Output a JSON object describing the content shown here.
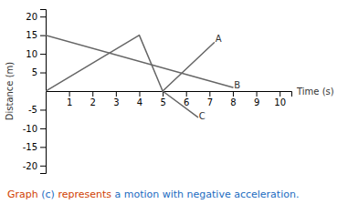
{
  "chart_data": {
    "type": "line",
    "x_label": "Time (s)",
    "y_label": "Distance (m)",
    "series": [
      {
        "x": [
          0,
          8
        ],
        "values": [
          15,
          1
        ],
        "color": "#666666"
      },
      {
        "x": [
          0,
          4,
          5
        ],
        "values": [
          0,
          15,
          0
        ],
        "color": "#666666"
      },
      {
        "x": [
          5,
          7.2
        ],
        "values": [
          0,
          13
        ],
        "color": "#666666"
      },
      {
        "x": [
          5,
          6.5
        ],
        "values": [
          0,
          -7
        ],
        "color": "#666666"
      }
    ],
    "annotations": [
      {
        "text": "A",
        "x": 7.25,
        "y": 13.1
      },
      {
        "text": "B",
        "x": 8.05,
        "y": 0.8
      },
      {
        "text": "C",
        "x": 6.55,
        "y": -7.5
      }
    ],
    "xlim": [
      0,
      10.5
    ],
    "ylim": [
      -22,
      22
    ],
    "xticks": [
      1,
      2,
      3,
      4,
      5,
      6,
      7,
      8,
      9,
      10
    ],
    "yticks": [
      -20,
      -15,
      -10,
      -5,
      5,
      10,
      15,
      20
    ],
    "grid": false,
    "caption": [
      {
        "text": "Graph ",
        "color": "#d04000"
      },
      {
        "text": "(c)",
        "color": "#1a6bbf"
      },
      {
        "text": " represents ",
        "color": "#d04000"
      },
      {
        "text": "a motion with negative acceleration.",
        "color": "#1a6bbf"
      }
    ]
  }
}
